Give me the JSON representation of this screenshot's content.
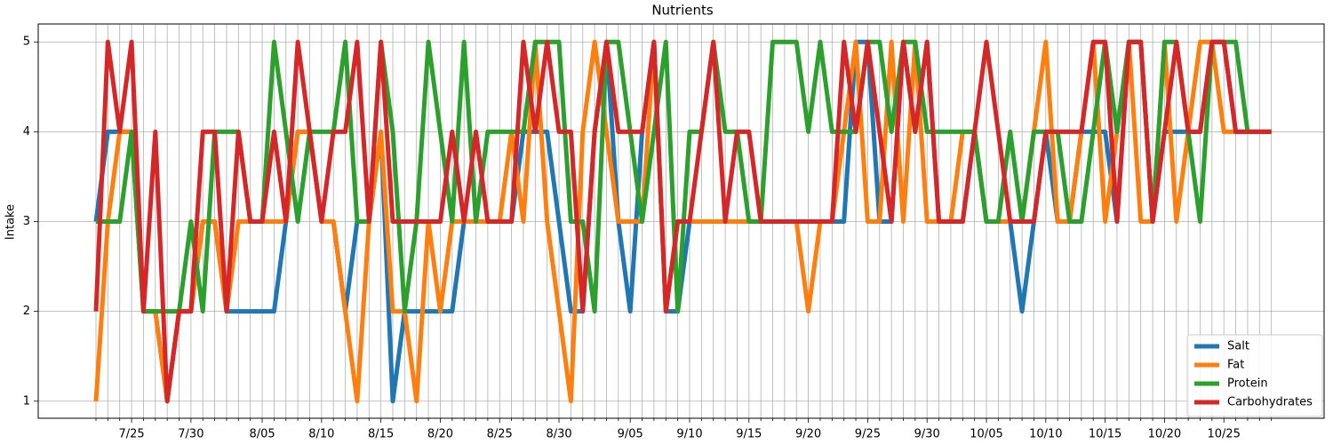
{
  "chart_data": {
    "type": "line",
    "title": "Nutrients",
    "y_label": "Intake",
    "categories": [
      null,
      null,
      null,
      "7/25",
      null,
      null,
      null,
      null,
      "7/30",
      null,
      null,
      null,
      null,
      null,
      "8/05",
      null,
      null,
      null,
      null,
      "8/10",
      null,
      null,
      null,
      null,
      "8/15",
      null,
      null,
      null,
      null,
      "8/20",
      null,
      null,
      null,
      null,
      "8/25",
      null,
      null,
      null,
      null,
      "8/30",
      null,
      null,
      null,
      null,
      null,
      "9/05",
      null,
      null,
      null,
      null,
      "9/10",
      null,
      null,
      null,
      null,
      "9/15",
      null,
      null,
      null,
      null,
      "9/20",
      null,
      null,
      null,
      null,
      "9/25",
      null,
      null,
      null,
      null,
      "9/30",
      null,
      null,
      null,
      null,
      "10/05",
      null,
      null,
      null,
      null,
      "10/10",
      null,
      null,
      null,
      null,
      "10/15",
      null,
      null,
      null,
      null,
      "10/20",
      null,
      null,
      null,
      null,
      "10/25",
      null,
      null,
      null,
      null
    ],
    "series": [
      {
        "name": "Salt",
        "color": "#1f77b4",
        "values": [
          3,
          4,
          4,
          4,
          2,
          2,
          1,
          2,
          2,
          3,
          3,
          2,
          2,
          2,
          2,
          2,
          3,
          4,
          4,
          3,
          3,
          2,
          3,
          3,
          4,
          1,
          2,
          2,
          2,
          2,
          2,
          3,
          3,
          3,
          3,
          3,
          4,
          4,
          4,
          3,
          2,
          2,
          4,
          5,
          3,
          2,
          4,
          5,
          2,
          2,
          3,
          3,
          3,
          3,
          3,
          3,
          3,
          3,
          3,
          3,
          3,
          3,
          3,
          3,
          5,
          5,
          3,
          3,
          5,
          4,
          5,
          3,
          3,
          3,
          4,
          3,
          3,
          3,
          2,
          3,
          4,
          3,
          3,
          4,
          4,
          4,
          3,
          5,
          5,
          3,
          4,
          4,
          4,
          4,
          5,
          5,
          4,
          4,
          4,
          4
        ]
      },
      {
        "name": "Fat",
        "color": "#ff7f0e",
        "values": [
          1,
          3,
          4,
          4,
          2,
          2,
          1,
          2,
          2,
          3,
          3,
          2,
          3,
          3,
          3,
          3,
          3,
          4,
          4,
          3,
          3,
          2,
          1,
          3,
          4,
          2,
          2,
          1,
          3,
          2,
          3,
          3,
          3,
          3,
          3,
          4,
          3,
          5,
          3,
          2,
          1,
          4,
          5,
          4,
          3,
          3,
          3,
          5,
          2,
          3,
          3,
          3,
          3,
          3,
          3,
          3,
          3,
          3,
          3,
          3,
          2,
          3,
          3,
          4,
          5,
          3,
          3,
          5,
          3,
          5,
          3,
          3,
          3,
          4,
          4,
          3,
          3,
          3,
          3,
          4,
          5,
          3,
          3,
          4,
          5,
          3,
          4,
          5,
          3,
          3,
          5,
          3,
          4,
          5,
          5,
          4,
          4,
          4,
          4,
          4
        ]
      },
      {
        "name": "Protein",
        "color": "#2ca02c",
        "values": [
          3,
          3,
          3,
          4,
          2,
          2,
          2,
          2,
          3,
          2,
          4,
          4,
          4,
          3,
          3,
          5,
          4,
          3,
          4,
          4,
          4,
          5,
          3,
          3,
          5,
          4,
          2,
          3,
          5,
          4,
          3,
          5,
          3,
          4,
          4,
          4,
          4,
          5,
          5,
          5,
          3,
          3,
          2,
          5,
          5,
          4,
          3,
          4,
          5,
          2,
          4,
          4,
          5,
          4,
          4,
          3,
          3,
          5,
          5,
          5,
          4,
          5,
          4,
          4,
          4,
          5,
          5,
          4,
          5,
          5,
          4,
          4,
          4,
          4,
          4,
          3,
          3,
          4,
          3,
          4,
          4,
          4,
          3,
          3,
          4,
          5,
          4,
          5,
          5,
          3,
          5,
          5,
          4,
          3,
          5,
          5,
          5,
          4,
          4,
          4
        ]
      },
      {
        "name": "Carbohydrates",
        "color": "#d62728",
        "values": [
          2,
          5,
          4,
          5,
          2,
          4,
          1,
          2,
          2,
          4,
          4,
          2,
          4,
          3,
          3,
          4,
          3,
          5,
          4,
          3,
          4,
          4,
          5,
          3,
          5,
          3,
          3,
          3,
          3,
          3,
          4,
          3,
          4,
          3,
          3,
          3,
          5,
          4,
          5,
          4,
          4,
          2,
          4,
          5,
          4,
          4,
          4,
          5,
          2,
          3,
          3,
          4,
          5,
          3,
          4,
          4,
          3,
          3,
          3,
          3,
          3,
          3,
          3,
          5,
          4,
          5,
          4,
          3,
          5,
          4,
          5,
          3,
          3,
          3,
          4,
          5,
          4,
          3,
          3,
          3,
          4,
          4,
          4,
          4,
          5,
          5,
          3,
          5,
          5,
          3,
          4,
          5,
          4,
          4,
          5,
          5,
          4,
          4,
          4,
          4
        ]
      }
    ],
    "ylim": [
      0.81,
      5.2
    ],
    "yticks": [
      1,
      2,
      3,
      4,
      5
    ],
    "grid": true,
    "legend": "lower right"
  }
}
